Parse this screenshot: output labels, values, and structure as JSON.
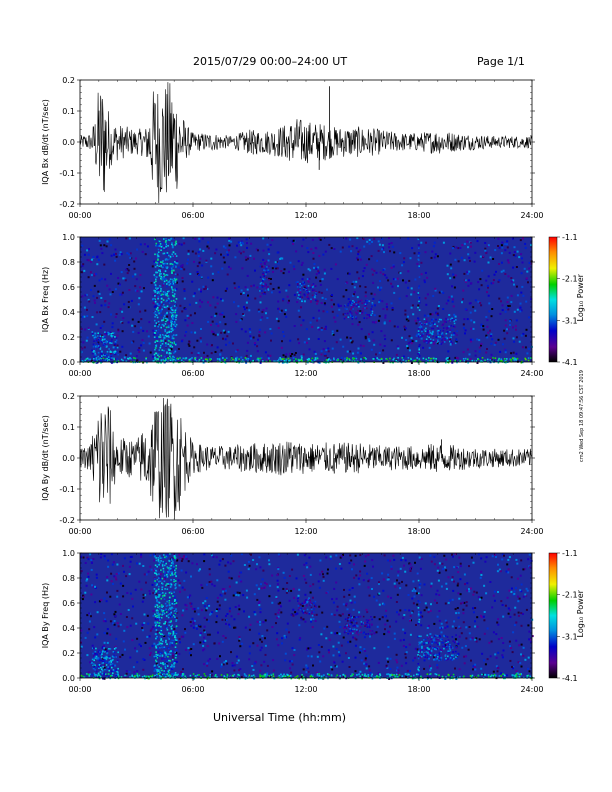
{
  "header": {
    "date_title": "2015/07/29  00:00–24:00 UT",
    "page_label": "Page 1/1"
  },
  "stamp": "cm2 Wed Sep 18 09:47:56 CST 2019",
  "colors": {
    "spectrogram_background": "#1e2a9c",
    "waveform_line": "#000000",
    "colorbar": [
      "#000000",
      "#5a0090",
      "#0000c8",
      "#0090e0",
      "#00e0e0",
      "#00d000",
      "#f0f000",
      "#ff8c00",
      "#ff0000"
    ]
  },
  "chart_data": [
    {
      "type": "line",
      "ylabel": "IQA Bx dB/dt (nT/sec)",
      "xlim_hours": [
        0,
        24
      ],
      "ylim": [
        -0.2,
        0.2
      ],
      "yticks": [
        "0.2",
        "0.1",
        "0.0",
        "-0.1",
        "-0.2"
      ],
      "xticks": [
        "00:00",
        "06:00",
        "12:00",
        "18:00",
        "24:00"
      ],
      "envelope": [
        [
          0.0,
          0.02
        ],
        [
          0.6,
          0.03
        ],
        [
          0.9,
          0.12
        ],
        [
          1.0,
          0.2
        ],
        [
          1.3,
          0.2
        ],
        [
          1.6,
          0.08
        ],
        [
          2.0,
          0.06
        ],
        [
          2.5,
          0.05
        ],
        [
          3.0,
          0.04
        ],
        [
          3.5,
          0.05
        ],
        [
          3.8,
          0.15
        ],
        [
          4.0,
          0.2
        ],
        [
          5.0,
          0.2
        ],
        [
          5.3,
          0.12
        ],
        [
          5.6,
          0.06
        ],
        [
          6.0,
          0.03
        ],
        [
          7.0,
          0.03
        ],
        [
          8.0,
          0.02
        ],
        [
          9.0,
          0.04
        ],
        [
          10.0,
          0.04
        ],
        [
          11.0,
          0.06
        ],
        [
          11.5,
          0.08
        ],
        [
          12.0,
          0.07
        ],
        [
          13.0,
          0.06
        ],
        [
          13.5,
          0.05
        ],
        [
          14.0,
          0.05
        ],
        [
          15.0,
          0.05
        ],
        [
          16.0,
          0.04
        ],
        [
          17.0,
          0.03
        ],
        [
          18.0,
          0.03
        ],
        [
          19.0,
          0.04
        ],
        [
          20.0,
          0.03
        ],
        [
          22.0,
          0.02
        ],
        [
          24.0,
          0.02
        ]
      ],
      "spikes": [
        [
          13.25,
          0.18
        ],
        [
          11.0,
          -0.05
        ],
        [
          9.2,
          -0.04
        ],
        [
          12.7,
          -0.09
        ]
      ]
    },
    {
      "type": "heatmap",
      "ylabel": "IQA Bx Freq (Hz)",
      "xlim_hours": [
        0,
        24
      ],
      "ylim": [
        0.0,
        1.0
      ],
      "yticks": [
        "1.0",
        "0.8",
        "0.6",
        "0.4",
        "0.2",
        "0.0"
      ],
      "xticks": [
        "00:00",
        "06:00",
        "12:00",
        "18:00",
        "24:00"
      ],
      "colorbar_label": "Log₁₀ Power",
      "colorbar_ticks": [
        "-1.1",
        "-2.1",
        "-3.1",
        "-4.1"
      ],
      "colorbar_range": [
        -4.1,
        -1.1
      ],
      "features": [
        {
          "t0": 0.0,
          "t1": 24.0,
          "f0": 0.0,
          "f1": 0.04,
          "level": -2.4
        },
        {
          "t0": 0.6,
          "t1": 2.0,
          "f0": 0.0,
          "f1": 0.25,
          "level": -2.9
        },
        {
          "t0": 3.9,
          "t1": 5.1,
          "f0": 0.0,
          "f1": 1.0,
          "level": -2.7
        },
        {
          "t0": 9.5,
          "t1": 10.0,
          "f0": 0.55,
          "f1": 0.8,
          "level": -3.2
        },
        {
          "t0": 11.5,
          "t1": 12.5,
          "f0": 0.5,
          "f1": 0.65,
          "level": -3.2
        },
        {
          "t0": 14.0,
          "t1": 15.5,
          "f0": 0.35,
          "f1": 0.5,
          "level": -3.2
        },
        {
          "t0": 17.9,
          "t1": 18.0,
          "f0": 0.0,
          "f1": 1.0,
          "level": -2.9
        },
        {
          "t0": 18.0,
          "t1": 20.0,
          "f0": 0.15,
          "f1": 0.35,
          "level": -3.1
        }
      ]
    },
    {
      "type": "line",
      "ylabel": "IQA By dB/dt (nT/sec)",
      "xlim_hours": [
        0,
        24
      ],
      "ylim": [
        -0.2,
        0.2
      ],
      "yticks": [
        "0.2",
        "0.1",
        "0.0",
        "-0.1",
        "-0.2"
      ],
      "xticks": [
        "00:00",
        "06:00",
        "12:00",
        "18:00",
        "24:00"
      ],
      "envelope": [
        [
          0.0,
          0.03
        ],
        [
          0.5,
          0.04
        ],
        [
          0.9,
          0.15
        ],
        [
          1.0,
          0.2
        ],
        [
          1.5,
          0.2
        ],
        [
          1.8,
          0.1
        ],
        [
          2.0,
          0.07
        ],
        [
          3.0,
          0.06
        ],
        [
          3.8,
          0.15
        ],
        [
          4.0,
          0.2
        ],
        [
          5.2,
          0.2
        ],
        [
          5.5,
          0.12
        ],
        [
          6.0,
          0.05
        ],
        [
          7.0,
          0.04
        ],
        [
          8.0,
          0.04
        ],
        [
          9.0,
          0.05
        ],
        [
          10.0,
          0.05
        ],
        [
          11.0,
          0.06
        ],
        [
          12.0,
          0.05
        ],
        [
          13.0,
          0.05
        ],
        [
          14.0,
          0.05
        ],
        [
          15.0,
          0.05
        ],
        [
          16.0,
          0.04
        ],
        [
          17.0,
          0.04
        ],
        [
          18.0,
          0.04
        ],
        [
          19.0,
          0.05
        ],
        [
          20.0,
          0.04
        ],
        [
          22.0,
          0.03
        ],
        [
          24.0,
          0.03
        ]
      ],
      "spikes": [
        [
          19.2,
          0.06
        ],
        [
          11.2,
          0.05
        ],
        [
          13.5,
          -0.05
        ]
      ]
    },
    {
      "type": "heatmap",
      "ylabel": "IQA By Freq (Hz)",
      "xlim_hours": [
        0,
        24
      ],
      "ylim": [
        0.0,
        1.0
      ],
      "yticks": [
        "1.0",
        "0.8",
        "0.6",
        "0.4",
        "0.2",
        "0.0"
      ],
      "xticks": [
        "00:00",
        "06:00",
        "12:00",
        "18:00",
        "24:00"
      ],
      "colorbar_label": "Log₁₀ Power",
      "colorbar_ticks": [
        "-1.1",
        "-2.1",
        "-3.1",
        "-4.1"
      ],
      "colorbar_range": [
        -4.1,
        -1.1
      ],
      "features": [
        {
          "t0": 0.0,
          "t1": 24.0,
          "f0": 0.0,
          "f1": 0.04,
          "level": -2.4
        },
        {
          "t0": 0.6,
          "t1": 2.0,
          "f0": 0.0,
          "f1": 0.25,
          "level": -2.9
        },
        {
          "t0": 3.9,
          "t1": 5.1,
          "f0": 0.0,
          "f1": 1.0,
          "level": -2.7
        },
        {
          "t0": 11.5,
          "t1": 12.5,
          "f0": 0.5,
          "f1": 0.65,
          "level": -3.3
        },
        {
          "t0": 14.0,
          "t1": 15.5,
          "f0": 0.35,
          "f1": 0.5,
          "level": -3.3
        },
        {
          "t0": 17.9,
          "t1": 18.0,
          "f0": 0.0,
          "f1": 0.8,
          "level": -2.9
        },
        {
          "t0": 18.0,
          "t1": 20.0,
          "f0": 0.15,
          "f1": 0.35,
          "level": -3.1
        }
      ]
    }
  ],
  "x_axis_label": "Universal Time (hh:mm)"
}
